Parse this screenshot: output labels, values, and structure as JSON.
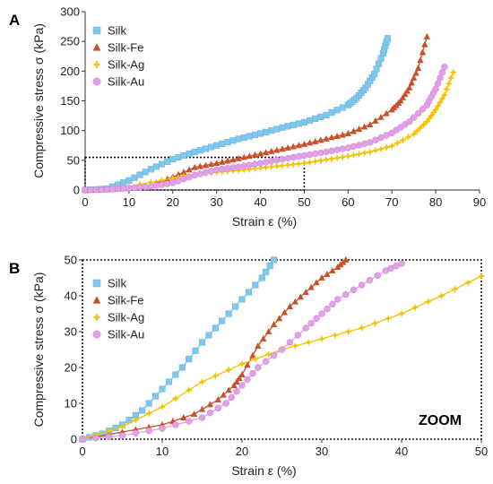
{
  "chart_data": [
    {
      "type": "line",
      "panel_label": "A",
      "xlabel": "Strain  ε  (%)",
      "ylabel": "Compressive stress σ  (kPa)",
      "xlim": [
        0,
        90
      ],
      "ylim": [
        0,
        300
      ],
      "xticks": [
        0,
        10,
        20,
        30,
        40,
        50,
        60,
        70,
        80,
        90
      ],
      "yticks": [
        0,
        50,
        100,
        150,
        200,
        250,
        300
      ],
      "grid": false,
      "legend_position": "top-left",
      "zoom_region": {
        "x": [
          0,
          50
        ],
        "y": [
          0,
          55
        ]
      },
      "series": [
        {
          "name": "Silk",
          "color": "#7ec8ee",
          "marker": "square",
          "x": [
            0,
            5,
            10,
            15,
            20,
            25,
            30,
            35,
            40,
            45,
            50,
            55,
            60,
            62,
            64,
            66,
            68,
            69
          ],
          "y": [
            0,
            2,
            16,
            35,
            52,
            64,
            75,
            86,
            95,
            105,
            114,
            126,
            143,
            155,
            172,
            195,
            230,
            255
          ]
        },
        {
          "name": "Silk-Fe",
          "color": "#c8502a",
          "marker": "triangle",
          "x": [
            0,
            5,
            10,
            15,
            20,
            25,
            30,
            35,
            40,
            45,
            50,
            55,
            60,
            65,
            70,
            72,
            74,
            76,
            78
          ],
          "y": [
            0,
            1,
            3,
            8,
            22,
            38,
            45,
            53,
            61,
            69,
            77,
            86,
            95,
            110,
            135,
            150,
            172,
            205,
            258
          ]
        },
        {
          "name": "Silk-Ag",
          "color": "#f2c400",
          "marker": "star",
          "x": [
            0,
            10,
            20,
            25,
            30,
            35,
            40,
            45,
            50,
            55,
            60,
            65,
            70,
            75,
            78,
            80,
            82,
            84
          ],
          "y": [
            0,
            6,
            20,
            26,
            30,
            33,
            37,
            41,
            45,
            51,
            57,
            64,
            74,
            94,
            115,
            135,
            160,
            198
          ]
        },
        {
          "name": "Silk-Au",
          "color": "#e2a0e8",
          "marker": "circle",
          "x": [
            0,
            5,
            10,
            15,
            20,
            25,
            30,
            35,
            40,
            45,
            50,
            55,
            60,
            65,
            70,
            74,
            78,
            80,
            82
          ],
          "y": [
            0,
            1,
            3,
            6,
            12,
            25,
            34,
            39,
            45,
            52,
            58,
            64,
            71,
            80,
            96,
            115,
            143,
            170,
            207
          ]
        }
      ]
    },
    {
      "type": "line",
      "panel_label": "B",
      "xlabel": "Strain  ε  (%)",
      "ylabel": "Compressive stress σ  (kPa)",
      "xlim": [
        0,
        50
      ],
      "ylim": [
        0,
        50
      ],
      "xticks": [
        0,
        10,
        20,
        30,
        40,
        50
      ],
      "yticks": [
        0,
        10,
        20,
        30,
        40,
        50
      ],
      "grid": false,
      "legend_position": "top-left",
      "annotation": "ZOOM",
      "series": [
        {
          "name": "Silk",
          "color": "#7ec8ee",
          "marker": "square",
          "x": [
            0,
            2.5,
            5,
            7.5,
            10,
            12.5,
            15,
            17.5,
            20,
            22.5,
            24
          ],
          "y": [
            0,
            1.5,
            4,
            8,
            14,
            20,
            27,
            33,
            39,
            45,
            50
          ]
        },
        {
          "name": "Silk-Fe",
          "color": "#c8502a",
          "marker": "triangle",
          "x": [
            0,
            5,
            10,
            14,
            17,
            19,
            20,
            22,
            24,
            26,
            28,
            30,
            32,
            33
          ],
          "y": [
            0,
            2,
            4,
            7,
            11,
            15,
            18,
            26,
            32,
            37,
            41,
            45,
            48,
            50
          ]
        },
        {
          "name": "Silk-Ag",
          "color": "#f2c400",
          "marker": "star",
          "x": [
            0,
            5,
            10,
            15,
            20,
            25,
            30,
            35,
            40,
            45,
            50
          ],
          "y": [
            0,
            3.5,
            9,
            16,
            21,
            25,
            28,
            31,
            35,
            40,
            45.5
          ]
        },
        {
          "name": "Silk-Au",
          "color": "#e2a0e8",
          "marker": "circle",
          "x": [
            0,
            5,
            10,
            15,
            18,
            20,
            22,
            25,
            28,
            30,
            32,
            35,
            38,
            40
          ],
          "y": [
            0,
            1,
            3,
            6,
            10,
            15,
            20,
            25,
            31,
            35,
            39,
            43,
            47,
            49
          ]
        }
      ]
    }
  ]
}
